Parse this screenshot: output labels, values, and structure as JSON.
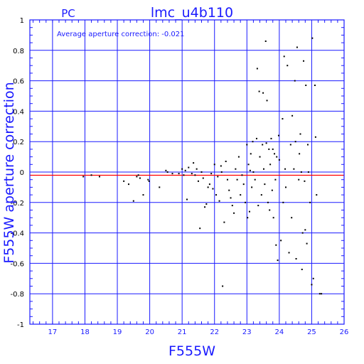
{
  "chart_data": {
    "type": "scatter",
    "title": "lmc_u4b110",
    "subtitle": "PC",
    "annotation": "Average aperture correction: -0.021",
    "xlabel": "F555W",
    "ylabel": "F555W aperture correction",
    "xlim": [
      16.3,
      26.0
    ],
    "ylim": [
      -1.0,
      1.0
    ],
    "xticks": [
      17,
      18,
      19,
      20,
      21,
      22,
      23,
      24,
      25,
      26
    ],
    "yticks": [
      -1,
      -0.8,
      -0.6,
      -0.4,
      -0.2,
      0,
      0.2,
      0.4,
      0.6,
      0.8,
      1
    ],
    "grid": true,
    "zero_line": 0,
    "mean_line": -0.021,
    "colors": {
      "frame": "#1a1aff",
      "text": "#1a1aff",
      "mean_line": "#ff0000",
      "points": "#000000"
    },
    "points": [
      [
        17.95,
        -0.03
      ],
      [
        18.2,
        -0.02
      ],
      [
        18.45,
        -0.03
      ],
      [
        19.2,
        -0.06
      ],
      [
        19.35,
        -0.08
      ],
      [
        19.5,
        -0.19
      ],
      [
        19.6,
        -0.03
      ],
      [
        19.65,
        -0.02
      ],
      [
        19.7,
        -0.04
      ],
      [
        19.8,
        -0.15
      ],
      [
        19.95,
        -0.05
      ],
      [
        19.98,
        -0.06
      ],
      [
        20.3,
        -0.1
      ],
      [
        20.5,
        0.01
      ],
      [
        20.55,
        0.0
      ],
      [
        20.7,
        -0.01
      ],
      [
        20.9,
        -0.01
      ],
      [
        21.0,
        0.02
      ],
      [
        21.05,
        -0.02
      ],
      [
        21.1,
        0.01
      ],
      [
        21.15,
        -0.18
      ],
      [
        21.2,
        0.03
      ],
      [
        21.3,
        -0.01
      ],
      [
        21.35,
        0.06
      ],
      [
        21.4,
        -0.02
      ],
      [
        21.45,
        0.02
      ],
      [
        21.5,
        -0.06
      ],
      [
        21.55,
        -0.37
      ],
      [
        21.6,
        0.0
      ],
      [
        21.65,
        -0.04
      ],
      [
        21.7,
        -0.23
      ],
      [
        21.75,
        -0.21
      ],
      [
        21.8,
        -0.1
      ],
      [
        21.85,
        -0.08
      ],
      [
        21.9,
        -0.01
      ],
      [
        21.95,
        -0.11
      ],
      [
        22.0,
        0.05
      ],
      [
        22.05,
        -0.15
      ],
      [
        22.1,
        -0.03
      ],
      [
        22.15,
        -0.19
      ],
      [
        22.2,
        0.04
      ],
      [
        22.22,
        -0.0
      ],
      [
        22.25,
        -0.75
      ],
      [
        22.3,
        -0.33
      ],
      [
        22.35,
        0.07
      ],
      [
        22.4,
        -0.05
      ],
      [
        22.45,
        -0.12
      ],
      [
        22.5,
        -0.17
      ],
      [
        22.55,
        -0.22
      ],
      [
        22.6,
        -0.27
      ],
      [
        22.65,
        0.02
      ],
      [
        22.7,
        -0.05
      ],
      [
        22.75,
        0.1
      ],
      [
        22.8,
        -0.15
      ],
      [
        22.85,
        -0.02
      ],
      [
        22.9,
        -0.08
      ],
      [
        22.95,
        -0.2
      ],
      [
        23.0,
        0.18
      ],
      [
        23.02,
        -0.3
      ],
      [
        23.05,
        0.05
      ],
      [
        23.08,
        -0.26
      ],
      [
        23.1,
        0.01
      ],
      [
        23.12,
        0.12
      ],
      [
        23.15,
        -0.1
      ],
      [
        23.18,
        0.2
      ],
      [
        23.2,
        0.0
      ],
      [
        23.25,
        -0.05
      ],
      [
        23.3,
        0.22
      ],
      [
        23.32,
        0.68
      ],
      [
        23.35,
        -0.22
      ],
      [
        23.38,
        0.53
      ],
      [
        23.4,
        0.1
      ],
      [
        23.45,
        -0.15
      ],
      [
        23.48,
        0.18
      ],
      [
        23.5,
        0.52
      ],
      [
        23.52,
        0.02
      ],
      [
        23.55,
        -0.08
      ],
      [
        23.58,
        0.86
      ],
      [
        23.6,
        0.19
      ],
      [
        23.62,
        0.47
      ],
      [
        23.65,
        -0.2
      ],
      [
        23.68,
        0.15
      ],
      [
        23.7,
        -0.25
      ],
      [
        23.72,
        0.05
      ],
      [
        23.75,
        0.22
      ],
      [
        23.78,
        -0.12
      ],
      [
        23.8,
        0.15
      ],
      [
        23.82,
        -0.3
      ],
      [
        23.85,
        0.12
      ],
      [
        23.88,
        -0.05
      ],
      [
        23.9,
        -0.48
      ],
      [
        23.92,
        0.1
      ],
      [
        23.95,
        -0.58
      ],
      [
        23.98,
        0.24
      ],
      [
        24.0,
        0.08
      ],
      [
        24.05,
        -0.45
      ],
      [
        24.1,
        0.35
      ],
      [
        24.12,
        -0.2
      ],
      [
        24.15,
        0.76
      ],
      [
        24.18,
        0.02
      ],
      [
        24.2,
        -0.1
      ],
      [
        24.25,
        0.7
      ],
      [
        24.3,
        -0.53
      ],
      [
        24.35,
        0.18
      ],
      [
        24.38,
        -0.3
      ],
      [
        24.4,
        0.37
      ],
      [
        24.45,
        0.02
      ],
      [
        24.48,
        0.6
      ],
      [
        24.5,
        0.2
      ],
      [
        24.52,
        -0.57
      ],
      [
        24.55,
        0.82
      ],
      [
        24.6,
        -0.05
      ],
      [
        24.62,
        0.12
      ],
      [
        24.65,
        0.25
      ],
      [
        24.68,
        0.0
      ],
      [
        24.7,
        -0.64
      ],
      [
        24.72,
        -0.4
      ],
      [
        24.75,
        0.73
      ],
      [
        24.78,
        -0.06
      ],
      [
        24.8,
        -0.38
      ],
      [
        24.82,
        0.57
      ],
      [
        24.85,
        -0.47
      ],
      [
        24.88,
        0.18
      ],
      [
        24.9,
        0.0
      ],
      [
        24.95,
        -0.2
      ],
      [
        25.0,
        -0.74
      ],
      [
        25.02,
        0.88
      ],
      [
        25.05,
        -0.7
      ],
      [
        25.1,
        0.57
      ],
      [
        25.12,
        0.23
      ],
      [
        25.15,
        -0.15
      ],
      [
        25.25,
        -0.8
      ],
      [
        25.3,
        -0.8
      ]
    ]
  }
}
